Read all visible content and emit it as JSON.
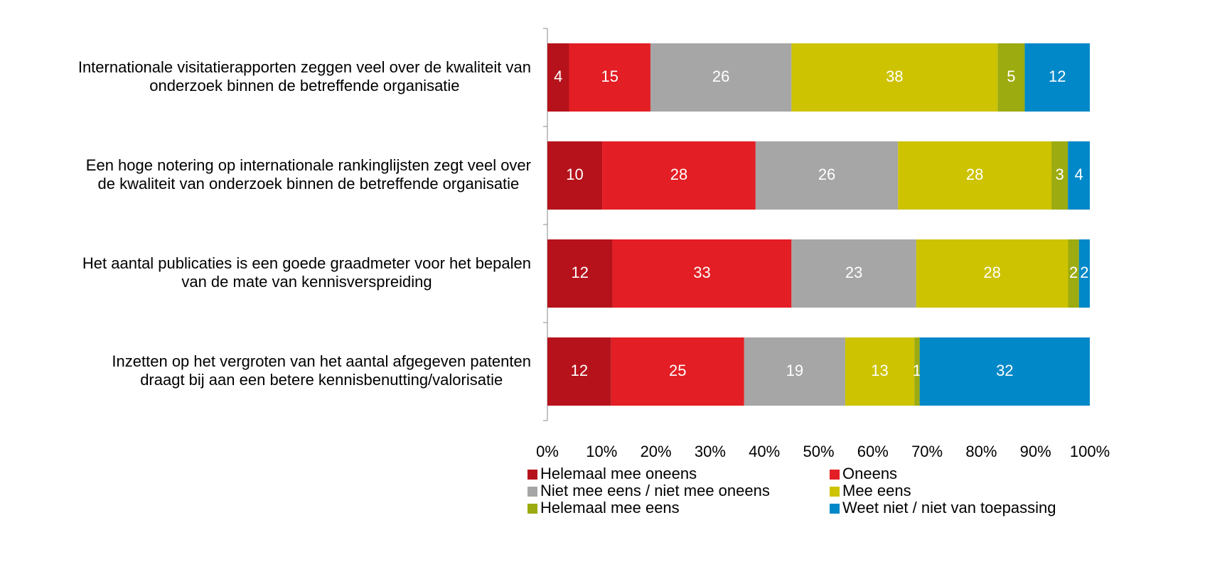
{
  "chart_data": {
    "type": "bar",
    "orientation": "horizontal",
    "stacked": "percent",
    "categories": [
      [
        "Internationale visitatierapporten zeggen veel over de kwaliteit van",
        "onderzoek binnen de betreffende organisatie"
      ],
      [
        "Een hoge notering op internationale rankinglijsten zegt veel over",
        "de kwaliteit van onderzoek binnen de betreffende organisatie"
      ],
      [
        "Het aantal publicaties is een goede graadmeter voor het bepalen",
        "van de mate van kennisverspreiding"
      ],
      [
        "Inzetten op het vergroten van het aantal afgegeven patenten",
        "draagt bij aan een betere kennisbenutting/valorisatie"
      ]
    ],
    "series": [
      {
        "name": "Helemaal mee oneens",
        "color": "#b5121b",
        "values": [
          4,
          10,
          12,
          12
        ]
      },
      {
        "name": "Oneens",
        "color": "#e31e24",
        "values": [
          15,
          28,
          33,
          25
        ]
      },
      {
        "name": "Niet mee eens / niet mee oneens",
        "color": "#a6a6a6",
        "values": [
          26,
          26,
          23,
          19
        ]
      },
      {
        "name": "Mee eens",
        "color": "#cdc300",
        "values": [
          38,
          28,
          28,
          13
        ]
      },
      {
        "name": "Helemaal mee eens",
        "color": "#9cab0f",
        "values": [
          5,
          3,
          2,
          1
        ]
      },
      {
        "name": "Weet niet / niet van toepassing",
        "color": "#0088c8",
        "values": [
          12,
          4,
          2,
          32
        ]
      }
    ],
    "xlim": [
      0,
      100
    ],
    "xticks": [
      {
        "value": 0,
        "label": "0%"
      },
      {
        "value": 10,
        "label": "10%"
      },
      {
        "value": 20,
        "label": "20%"
      },
      {
        "value": 30,
        "label": "30%"
      },
      {
        "value": 40,
        "label": "40%"
      },
      {
        "value": 50,
        "label": "50%"
      },
      {
        "value": 60,
        "label": "60%"
      },
      {
        "value": 70,
        "label": "70%"
      },
      {
        "value": 80,
        "label": "80%"
      },
      {
        "value": 90,
        "label": "90%"
      },
      {
        "value": 100,
        "label": "100%"
      }
    ],
    "legend": "bottom"
  }
}
